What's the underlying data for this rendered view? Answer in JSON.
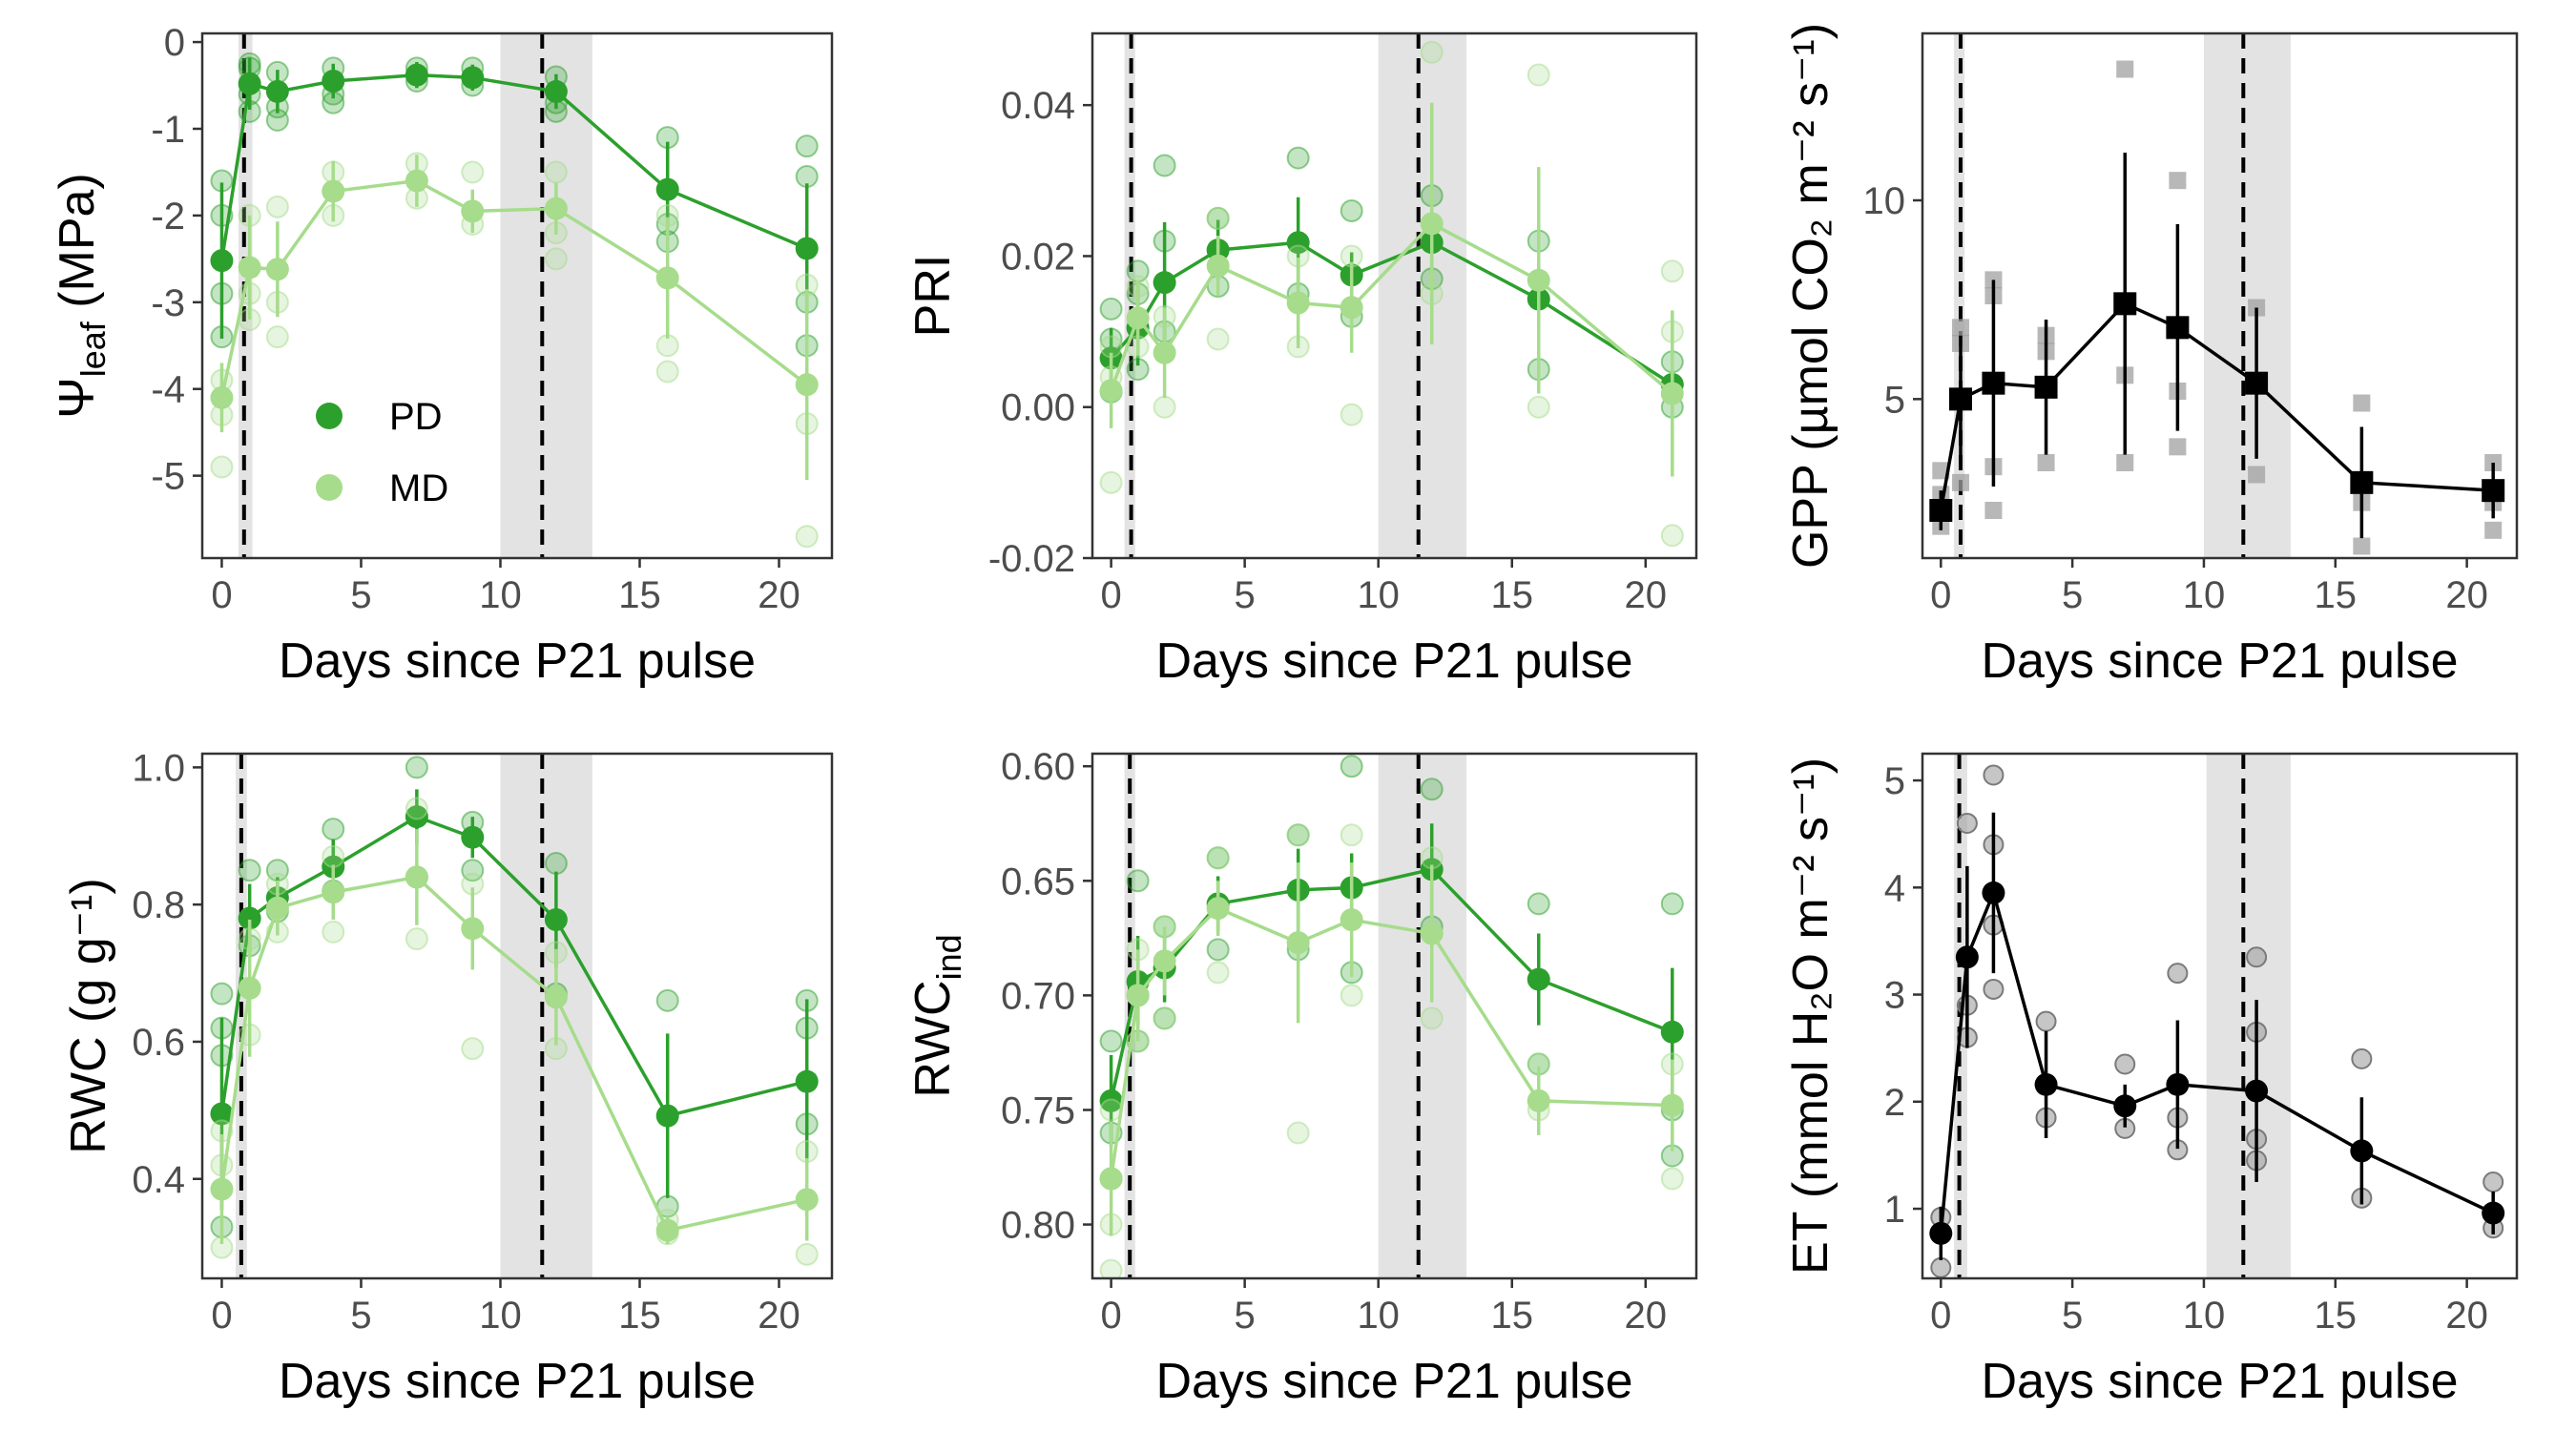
{
  "colors": {
    "PD": "#2ca02c",
    "MD": "#a6dc8b",
    "single": "#000000",
    "single_raw": "#a0a0a0",
    "shade": "#e3e3e3"
  },
  "legend": {
    "labels": [
      "PD",
      "MD"
    ]
  },
  "chart_data": [
    {
      "id": "psi",
      "type": "line",
      "ylabel": {
        "base": "Ψ",
        "sub": "leaf",
        "rest": " (MPa)"
      },
      "xlabel": "Days since P21 pulse",
      "xlim": [
        -0.7,
        21.9
      ],
      "ylim": [
        -5.95,
        0.1
      ],
      "xticks": [
        0,
        5,
        10,
        15,
        20
      ],
      "yticks": [
        0,
        -1,
        -2,
        -3,
        -4,
        -5
      ],
      "yticklabels": [
        "0",
        "-1",
        "-2",
        "-3",
        "-4",
        "-5"
      ],
      "shade": [
        [
          0.6,
          1.1
        ],
        [
          10,
          13.3
        ]
      ],
      "vlines": [
        0.8,
        11.5
      ],
      "x": [
        0,
        1,
        2,
        4,
        7,
        9,
        12,
        16,
        21
      ],
      "series": [
        {
          "name": "PD",
          "y": [
            -2.52,
            -0.48,
            -0.57,
            -0.45,
            -0.38,
            -0.41,
            -0.57,
            -1.7,
            -2.38
          ],
          "err": [
            0.9,
            0.3,
            0.25,
            0.2,
            0.15,
            0.15,
            0.2,
            0.55,
            0.75
          ],
          "raw": [
            [
              -1.6,
              -2.0,
              -2.9,
              -3.4
            ],
            [
              -0.3,
              -0.25,
              -0.6,
              -0.8
            ],
            [
              -0.35,
              -0.75,
              -0.9
            ],
            [
              -0.3,
              -0.6,
              -0.7
            ],
            [
              -0.3,
              -0.45
            ],
            [
              -0.3,
              -0.5
            ],
            [
              -0.4,
              -0.7,
              -0.8
            ],
            [
              -1.1,
              -2.1,
              -2.3
            ],
            [
              -1.2,
              -1.55,
              -3.0,
              -3.5
            ]
          ]
        },
        {
          "name": "MD",
          "y": [
            -4.1,
            -2.6,
            -2.62,
            -1.72,
            -1.6,
            -1.95,
            -1.92,
            -2.72,
            -3.95
          ],
          "err": [
            0.4,
            0.6,
            0.55,
            0.35,
            0.3,
            0.25,
            0.3,
            0.7,
            1.1
          ],
          "raw": [
            [
              -3.9,
              -4.3,
              -4.9
            ],
            [
              -2.0,
              -2.9,
              -3.2
            ],
            [
              -1.9,
              -3.0,
              -3.4
            ],
            [
              -1.5,
              -2.0
            ],
            [
              -1.4,
              -1.8
            ],
            [
              -1.5,
              -2.1
            ],
            [
              -1.5,
              -2.2,
              -2.5
            ],
            [
              -2.0,
              -3.5,
              -3.8
            ],
            [
              -2.8,
              -4.4,
              -5.7
            ]
          ]
        }
      ]
    },
    {
      "id": "pri",
      "type": "line",
      "ylabel": {
        "base": "PRI",
        "sub": "",
        "rest": ""
      },
      "xlabel": "Days since P21 pulse",
      "xlim": [
        -0.7,
        21.9
      ],
      "ylim": [
        -0.02,
        0.0495
      ],
      "xticks": [
        0,
        5,
        10,
        15,
        20
      ],
      "yticks": [
        0.04,
        0.02,
        0.0,
        -0.02
      ],
      "yticklabels": [
        "0.04",
        "0.02",
        "0.00",
        "-0.02"
      ],
      "shade": [
        [
          0.5,
          0.9
        ],
        [
          10,
          13.3
        ]
      ],
      "vlines": [
        0.75,
        11.5
      ],
      "x": [
        0,
        1,
        2,
        4,
        7,
        9,
        12,
        16,
        21
      ],
      "series": [
        {
          "name": "PD",
          "y": [
            0.0065,
            0.0105,
            0.0165,
            0.0208,
            0.0218,
            0.0175,
            0.0218,
            0.0143,
            0.003
          ],
          "err": [
            0.004,
            0.005,
            0.008,
            0.004,
            0.006,
            0.003,
            0.004,
            0.004,
            0.002
          ],
          "raw": [
            [
              0.002,
              0.009,
              0.013
            ],
            [
              0.005,
              0.015,
              0.018
            ],
            [
              0.01,
              0.022,
              0.032
            ],
            [
              0.016,
              0.025
            ],
            [
              0.015,
              0.033
            ],
            [
              0.012,
              0.026
            ],
            [
              0.017,
              0.028
            ],
            [
              0.005,
              0.022
            ],
            [
              0.0,
              0.006
            ]
          ]
        },
        {
          "name": "MD",
          "y": [
            0.0022,
            0.0118,
            0.0072,
            0.0187,
            0.0138,
            0.0132,
            0.0243,
            0.0168,
            0.0018
          ],
          "err": [
            0.005,
            0.005,
            0.006,
            0.004,
            0.006,
            0.006,
            0.016,
            0.015,
            0.011
          ],
          "raw": [
            [
              -0.01,
              0.004,
              0.008
            ],
            [
              0.008,
              0.016
            ],
            [
              0.0,
              0.012
            ],
            [
              0.009,
              0.025
            ],
            [
              0.008,
              0.02
            ],
            [
              -0.001,
              0.02
            ],
            [
              0.015,
              0.047
            ],
            [
              0.0,
              0.044
            ],
            [
              -0.017,
              0.01,
              0.018
            ]
          ]
        }
      ]
    },
    {
      "id": "gpp",
      "type": "line",
      "ylabel": {
        "base": "GPP",
        "sub": "",
        "rest": " (µmol CO₂ m⁻² s⁻¹)"
      },
      "xlabel": "Days since P21 pulse",
      "xlim": [
        -0.7,
        21.9
      ],
      "ylim": [
        1.0,
        14.2
      ],
      "xticks": [
        0,
        5,
        10,
        15,
        20
      ],
      "yticks": [
        10,
        5
      ],
      "yticklabels": [
        "10",
        "5"
      ],
      "shade": [
        [
          0.5,
          0.9
        ],
        [
          10,
          13.3
        ]
      ],
      "vlines": [
        0.75,
        11.5
      ],
      "marker": "square",
      "x": [
        0,
        0.75,
        2,
        4,
        7,
        9,
        12,
        16,
        21
      ],
      "series": [
        {
          "name": "GPP",
          "y": [
            2.2,
            5.0,
            5.4,
            5.3,
            7.4,
            6.8,
            5.4,
            2.9,
            2.7
          ],
          "err": [
            0.5,
            1.6,
            2.6,
            1.7,
            3.8,
            2.6,
            1.9,
            1.4,
            0.7
          ],
          "raw": [
            [
              1.8,
              2.6,
              3.2
            ],
            [
              2.9,
              6.4,
              6.8
            ],
            [
              2.2,
              3.3,
              7.6,
              8.0
            ],
            [
              3.4,
              6.2,
              6.6
            ],
            [
              3.4,
              5.6,
              13.3
            ],
            [
              3.8,
              5.2,
              10.5
            ],
            [
              3.1,
              7.3
            ],
            [
              1.3,
              2.4,
              4.9
            ],
            [
              1.7,
              2.4,
              3.4
            ]
          ]
        }
      ]
    },
    {
      "id": "rwc",
      "type": "line",
      "ylabel": {
        "base": "RWC (g g⁻¹)",
        "sub": "",
        "rest": ""
      },
      "xlabel": "Days since P21 pulse",
      "xlim": [
        -0.7,
        21.9
      ],
      "ylim": [
        0.255,
        1.02
      ],
      "xticks": [
        0,
        5,
        10,
        15,
        20
      ],
      "yticks": [
        1.0,
        0.8,
        0.6,
        0.4
      ],
      "yticklabels": [
        "1.0",
        "0.8",
        "0.6",
        "0.4"
      ],
      "shade": [
        [
          0.5,
          0.9
        ],
        [
          10,
          13.3
        ]
      ],
      "vlines": [
        0.7,
        11.5
      ],
      "x": [
        0,
        1,
        2,
        4,
        7,
        9,
        12,
        16,
        21
      ],
      "series": [
        {
          "name": "PD",
          "y": [
            0.495,
            0.78,
            0.81,
            0.855,
            0.928,
            0.898,
            0.778,
            0.492,
            0.542
          ],
          "err": [
            0.14,
            0.05,
            0.03,
            0.04,
            0.04,
            0.03,
            0.07,
            0.12,
            0.12
          ],
          "raw": [
            [
              0.33,
              0.58,
              0.62,
              0.67
            ],
            [
              0.74,
              0.85
            ],
            [
              0.79,
              0.85
            ],
            [
              0.82,
              0.91
            ],
            [
              0.84,
              1.0
            ],
            [
              0.85,
              0.92
            ],
            [
              0.67,
              0.86
            ],
            [
              0.36,
              0.66
            ],
            [
              0.48,
              0.62,
              0.66
            ]
          ]
        },
        {
          "name": "MD",
          "y": [
            0.385,
            0.678,
            0.795,
            0.818,
            0.84,
            0.765,
            0.665,
            0.325,
            0.37
          ],
          "err": [
            0.08,
            0.1,
            0.04,
            0.04,
            0.07,
            0.06,
            0.07,
            0.02,
            0.06
          ],
          "raw": [
            [
              0.3,
              0.42,
              0.47
            ],
            [
              0.61,
              0.75
            ],
            [
              0.76,
              0.83
            ],
            [
              0.76,
              0.87
            ],
            [
              0.75,
              0.94
            ],
            [
              0.59,
              0.83
            ],
            [
              0.59,
              0.73
            ],
            [
              0.32,
              0.34
            ],
            [
              0.29,
              0.44
            ]
          ]
        }
      ]
    },
    {
      "id": "rwcind",
      "type": "line",
      "ylabel": {
        "base": "RWC",
        "sub": "ind",
        "rest": ""
      },
      "xlabel": "Days since P21 pulse",
      "xlim": [
        -0.7,
        21.9
      ],
      "ylim": [
        0.8235,
        0.5945
      ],
      "xticks": [
        0,
        5,
        10,
        15,
        20
      ],
      "yticks": [
        0.6,
        0.65,
        0.7,
        0.75,
        0.8
      ],
      "yticklabels": [
        "0.60",
        "0.65",
        "0.70",
        "0.75",
        "0.80"
      ],
      "shade": [
        [
          0.5,
          0.9
        ],
        [
          10,
          13.3
        ]
      ],
      "vlines": [
        0.7,
        11.5
      ],
      "x": [
        0,
        1,
        2,
        4,
        7,
        9,
        12,
        16,
        21
      ],
      "series": [
        {
          "name": "PD",
          "y": [
            0.746,
            0.694,
            0.688,
            0.66,
            0.654,
            0.653,
            0.645,
            0.693,
            0.716
          ],
          "err": [
            0.02,
            0.02,
            0.015,
            0.012,
            0.018,
            0.015,
            0.02,
            0.02,
            0.028
          ],
          "raw": [
            [
              0.72,
              0.76,
              0.78
            ],
            [
              0.65,
              0.7,
              0.72
            ],
            [
              0.67,
              0.71
            ],
            [
              0.64,
              0.68
            ],
            [
              0.63,
              0.68
            ],
            [
              0.6,
              0.69
            ],
            [
              0.61,
              0.67
            ],
            [
              0.66,
              0.73
            ],
            [
              0.66,
              0.75,
              0.77
            ]
          ]
        },
        {
          "name": "MD",
          "y": [
            0.78,
            0.7,
            0.685,
            0.662,
            0.677,
            0.667,
            0.673,
            0.746,
            0.748
          ],
          "err": [
            0.025,
            0.02,
            0.015,
            0.012,
            0.035,
            0.025,
            0.03,
            0.015,
            0.02
          ],
          "raw": [
            [
              0.75,
              0.8,
              0.82
            ],
            [
              0.68,
              0.72
            ],
            [
              0.67,
              0.71
            ],
            [
              0.64,
              0.69
            ],
            [
              0.63,
              0.76
            ],
            [
              0.63,
              0.7
            ],
            [
              0.64,
              0.71
            ],
            [
              0.73,
              0.75
            ],
            [
              0.73,
              0.78
            ]
          ]
        }
      ]
    },
    {
      "id": "et",
      "type": "line",
      "ylabel": {
        "base": "ET",
        "sub": "",
        "rest": " (mmol H₂O m⁻² s⁻¹)"
      },
      "xlabel": "Days since P21 pulse",
      "xlim": [
        -0.7,
        21.9
      ],
      "ylim": [
        0.35,
        5.25
      ],
      "xticks": [
        0,
        5,
        10,
        15,
        20
      ],
      "yticks": [
        5,
        4,
        3,
        2,
        1
      ],
      "yticklabels": [
        "5",
        "4",
        "3",
        "2",
        "1"
      ],
      "shade": [
        [
          0.5,
          1.0
        ],
        [
          10.1,
          13.3
        ]
      ],
      "vlines": [
        0.7,
        11.5
      ],
      "x": [
        0,
        1,
        2,
        4,
        7,
        9,
        12,
        16,
        21
      ],
      "series": [
        {
          "name": "ET",
          "y": [
            0.77,
            3.35,
            3.95,
            2.16,
            1.96,
            2.16,
            2.1,
            1.54,
            0.96
          ],
          "err": [
            0.25,
            0.85,
            0.75,
            0.5,
            0.2,
            0.6,
            0.85,
            0.5,
            0.2
          ],
          "raw": [
            [
              0.45,
              0.92
            ],
            [
              2.6,
              2.9,
              4.6
            ],
            [
              3.05,
              3.65,
              4.4,
              5.05
            ],
            [
              1.85,
              2.75
            ],
            [
              1.75,
              2.35
            ],
            [
              1.55,
              1.85,
              3.2
            ],
            [
              1.45,
              1.65,
              2.65,
              3.35
            ],
            [
              1.1,
              2.4
            ],
            [
              0.82,
              1.25
            ]
          ]
        }
      ]
    }
  ]
}
